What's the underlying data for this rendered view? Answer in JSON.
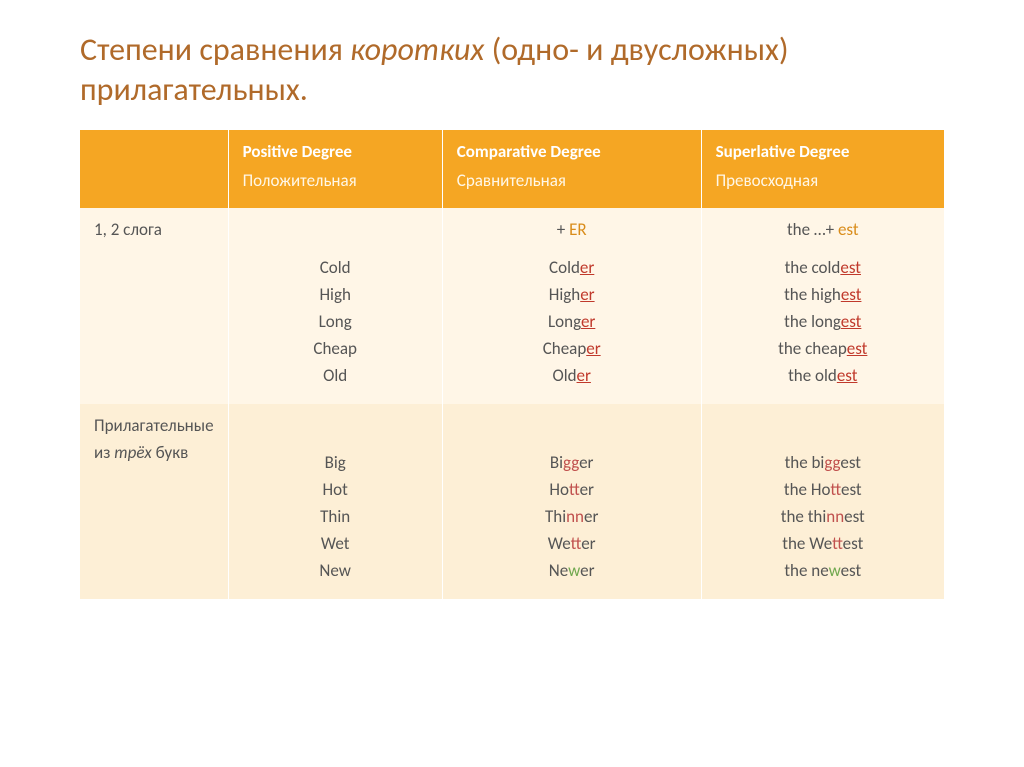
{
  "title": {
    "part1": "Степени сравнения ",
    "italic": "коротких",
    "part2": " (одно- и двусложных) прилагательных.",
    "color": "#b06a2a"
  },
  "headers": {
    "blank": "",
    "positive": {
      "en": "Positive Degree",
      "ru": "Положительная",
      "color_en": "#ffffff",
      "color_ru": "#fff7e6"
    },
    "comparative": {
      "en": "Comparative Degree",
      "ru": "Сравнительная"
    },
    "superlative": {
      "en": "Superlative Degree",
      "ru": "Превосходная"
    }
  },
  "row1": {
    "label": "1, 2 слога",
    "rule_comp": {
      "prefix": "+ ",
      "suffix": "ER"
    },
    "rule_sup": {
      "prefix": "the …+ ",
      "suffix": "est"
    },
    "positive": [
      "Cold",
      "High",
      "Long",
      "Cheap",
      "Old"
    ],
    "comparative": [
      {
        "base": "Cold",
        "suf": "er"
      },
      {
        "base": "High",
        "suf": "er"
      },
      {
        "base": "Long",
        "suf": "er"
      },
      {
        "base": "Cheap",
        "suf": "er"
      },
      {
        "base": "Old",
        "suf": "er"
      }
    ],
    "superlative": [
      {
        "pre": "the cold",
        "suf": "est"
      },
      {
        "pre": "the high",
        "suf": "est"
      },
      {
        "pre": "the long",
        "suf": "est"
      },
      {
        "pre": "the cheap",
        "suf": "est"
      },
      {
        "pre": "the old",
        "suf": "est"
      }
    ]
  },
  "row2": {
    "label_l1": "Прилагательные",
    "label_l2_pre": "из ",
    "label_l2_it": "трёх",
    "label_l2_post": "  букв",
    "positive": [
      "Big",
      "Hot",
      "Thin",
      "Wet",
      "New"
    ],
    "comparative": [
      {
        "pre": "Bi",
        "dd": "gg",
        "post": "er",
        "cls": "dd"
      },
      {
        "pre": "Ho",
        "dd": "tt",
        "post": "er",
        "cls": "dd"
      },
      {
        "pre": "Thi",
        "dd": "nn",
        "post": "er",
        "cls": "dd"
      },
      {
        "pre": "We",
        "dd": "tt",
        "post": "er",
        "cls": "dd"
      },
      {
        "pre": "Ne",
        "dd": "w",
        "post": "er",
        "cls": "gg"
      }
    ],
    "superlative": [
      {
        "pre": "the bi",
        "dd": "gg",
        "post": "est",
        "cls": "dd"
      },
      {
        "pre": "the Ho",
        "dd": "tt",
        "post": "est",
        "cls": "dd"
      },
      {
        "pre": "the thi",
        "dd": "nn",
        "post": "est",
        "cls": "dd"
      },
      {
        "pre": "the We",
        "dd": "tt",
        "post": "est",
        "cls": "dd"
      },
      {
        "pre": "the ne",
        "dd": "w",
        "post": "est",
        "cls": "gg"
      }
    ]
  },
  "palette": {
    "header_bg": "#f5a623",
    "row1_bg": "#fff6e7",
    "row2_bg": "#fdefd6",
    "red": "#c0392b",
    "green": "#70a84f",
    "text": "#555555",
    "accent": "#d98c1a"
  }
}
